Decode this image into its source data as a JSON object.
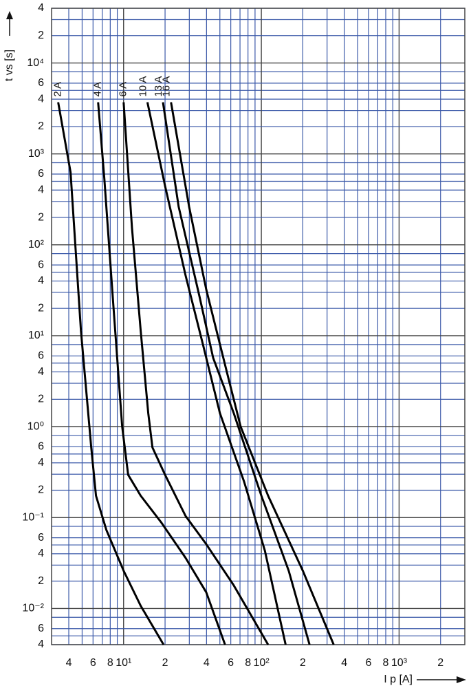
{
  "chart_data": {
    "type": "line",
    "log_x": true,
    "log_y": true,
    "grid": true,
    "x_label": "I p [A]",
    "y_label": "t vs [s]",
    "xlim": [
      3,
      3000
    ],
    "ylim": [
      0.004,
      40000
    ],
    "xticks": [
      4,
      6,
      8,
      {
        "value": 10,
        "label": "10¹"
      },
      {
        "value": 20,
        "label": "2"
      },
      {
        "value": 40,
        "label": "4"
      },
      {
        "value": 60,
        "label": "6"
      },
      {
        "value": 80,
        "label": "8"
      },
      {
        "value": 100,
        "label": "10²"
      },
      {
        "value": 200,
        "label": "2"
      },
      {
        "value": 400,
        "label": "4"
      },
      {
        "value": 600,
        "label": "6"
      },
      {
        "value": 800,
        "label": "8"
      },
      {
        "value": 1000,
        "label": "10³"
      },
      {
        "value": 2000,
        "label": "2"
      }
    ],
    "x_minor_ticks": [
      5,
      7,
      9,
      30,
      50,
      70,
      90,
      300,
      500,
      700,
      900
    ],
    "yticks": [
      {
        "value": 0.004,
        "label": "4"
      },
      {
        "value": 0.006,
        "label": "6"
      },
      {
        "value": 0.01,
        "label": "10⁻²"
      },
      {
        "value": 0.02,
        "label": "2"
      },
      {
        "value": 0.04,
        "label": "4"
      },
      {
        "value": 0.06,
        "label": "6"
      },
      {
        "value": 0.1,
        "label": "10⁻¹"
      },
      {
        "value": 0.2,
        "label": "2"
      },
      {
        "value": 0.4,
        "label": "4"
      },
      {
        "value": 0.6,
        "label": "6"
      },
      {
        "value": 1,
        "label": "10⁰"
      },
      2,
      4,
      6,
      {
        "value": 10,
        "label": "10¹"
      },
      {
        "value": 20,
        "label": "2"
      },
      {
        "value": 40,
        "label": "4"
      },
      {
        "value": 60,
        "label": "6"
      },
      {
        "value": 100,
        "label": "10²"
      },
      {
        "value": 200,
        "label": "2"
      },
      {
        "value": 400,
        "label": "4"
      },
      {
        "value": 600,
        "label": "6"
      },
      {
        "value": 1000,
        "label": "10³"
      },
      {
        "value": 2000,
        "label": "2"
      },
      {
        "value": 4000,
        "label": "4"
      },
      {
        "value": 6000,
        "label": "6"
      },
      {
        "value": 10000,
        "label": "10⁴"
      },
      {
        "value": 20000,
        "label": "2"
      },
      {
        "value": 40000,
        "label": "4"
      }
    ],
    "y_minor_ticks": [
      0.005,
      0.008,
      0.03,
      0.05,
      0.08,
      0.3,
      0.5,
      0.8,
      3,
      5,
      8,
      30,
      50,
      80,
      300,
      500,
      800,
      3000,
      5000,
      8000,
      30000
    ],
    "series": [
      {
        "name": "2 A",
        "color": "#000000",
        "x": [
          3.35,
          4.12,
          4.9,
          5.82,
          6.3,
          7.5,
          10,
          13.3,
          19.5
        ],
        "values": [
          3700,
          630,
          11.4,
          0.59,
          0.174,
          0.073,
          0.026,
          0.0107,
          0.004
        ]
      },
      {
        "name": "4 A",
        "color": "#000000",
        "x": [
          6.53,
          7.25,
          8.4,
          9.77,
          10.8,
          13.3,
          18.8,
          28.2,
          39.8,
          54.5
        ],
        "values": [
          3700,
          527,
          22.9,
          1.0,
          0.295,
          0.174,
          0.088,
          0.036,
          0.0151,
          0.004
        ]
      },
      {
        "name": "6 A",
        "color": "#000000",
        "x": [
          10,
          11.5,
          13.3,
          15.1,
          16.2,
          20,
          28.2,
          39.8,
          63,
          112
        ],
        "values": [
          3700,
          155,
          11.4,
          1.41,
          0.59,
          0.295,
          0.104,
          0.051,
          0.018,
          0.004
        ]
      },
      {
        "name": "10 A",
        "color": "#000000",
        "x": [
          14.9,
          20,
          28.2,
          37.6,
          50,
          75,
          106,
          150
        ],
        "values": [
          3700,
          443,
          46,
          8.1,
          1.41,
          0.247,
          0.0433,
          0.004
        ]
      },
      {
        "name": "13 A",
        "color": "#000000",
        "x": [
          19.3,
          25.1,
          35.5,
          44.7,
          63,
          100,
          158,
          224
        ],
        "values": [
          3700,
          263,
          27.3,
          5.7,
          1.41,
          0.174,
          0.026,
          0.004
        ]
      },
      {
        "name": "16 A",
        "color": "#000000",
        "x": [
          22.1,
          29.9,
          39.8,
          56.2,
          70.8,
          112,
          200,
          335
        ],
        "values": [
          3700,
          263,
          32.4,
          4.0,
          1.0,
          0.174,
          0.026,
          0.004
        ]
      }
    ]
  }
}
